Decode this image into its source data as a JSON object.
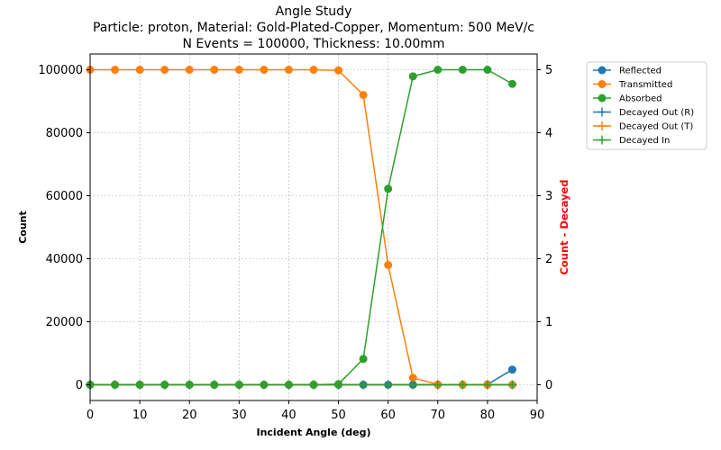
{
  "chart_data": {
    "type": "line",
    "title_lines": [
      "Angle Study",
      "Particle: proton, Material: Gold-Plated-Copper, Momentum: 500 MeV/c",
      "N Events = 100000, Thickness: 10.00mm"
    ],
    "xlabel": "Incident Angle (deg)",
    "ylabel": "Count",
    "ylabel_right": "Count - Decayed",
    "xlim": [
      0,
      90
    ],
    "ylim": [
      -5000,
      105000
    ],
    "ylim_right": [
      -0.25,
      5.25
    ],
    "x_ticks": [
      0,
      10,
      20,
      30,
      40,
      50,
      60,
      70,
      80,
      90
    ],
    "y_ticks": [
      0,
      20000,
      40000,
      60000,
      80000,
      100000
    ],
    "y_ticks_right": [
      0,
      1,
      2,
      3,
      4,
      5
    ],
    "grid": true,
    "legend_position": "outside-right",
    "x": [
      0,
      5,
      10,
      15,
      20,
      25,
      30,
      35,
      40,
      45,
      50,
      55,
      60,
      65,
      70,
      75,
      80,
      85
    ],
    "series": [
      {
        "name": "Reflected",
        "axis": "left",
        "marker": "circle",
        "color": "#1f77b4",
        "values": [
          0,
          0,
          0,
          0,
          0,
          0,
          0,
          0,
          0,
          0,
          0,
          0,
          0,
          0,
          0,
          0,
          100,
          4800
        ]
      },
      {
        "name": "Transmitted",
        "axis": "left",
        "marker": "circle",
        "color": "#ff7f0e",
        "values": [
          100000,
          100000,
          100000,
          100000,
          100000,
          100000,
          100000,
          100000,
          100000,
          100000,
          99800,
          92000,
          38000,
          2200,
          100,
          0,
          0,
          0
        ]
      },
      {
        "name": "Absorbed",
        "axis": "left",
        "marker": "circle",
        "color": "#2ca02c",
        "values": [
          0,
          0,
          0,
          0,
          0,
          0,
          0,
          0,
          0,
          0,
          200,
          8200,
          62200,
          97900,
          100000,
          100000,
          100000,
          95500
        ]
      },
      {
        "name": "Decayed Out (R)",
        "axis": "right",
        "marker": "plus",
        "color": "#1f77b4",
        "values": [
          0,
          0,
          0,
          0,
          0,
          0,
          0,
          0,
          0,
          0,
          0,
          0,
          0,
          0,
          0,
          0,
          0,
          0
        ]
      },
      {
        "name": "Decayed Out (T)",
        "axis": "right",
        "marker": "plus",
        "color": "#ff7f0e",
        "values": [
          0,
          0,
          0,
          0,
          0,
          0,
          0,
          0,
          0,
          0,
          0,
          0,
          0,
          0,
          0,
          0,
          0,
          0
        ]
      },
      {
        "name": "Decayed In",
        "axis": "right",
        "marker": "plus",
        "color": "#2ca02c",
        "values": [
          0,
          0,
          0,
          0,
          0,
          0,
          0,
          0,
          0,
          0,
          0,
          0,
          0,
          0,
          0,
          0,
          0,
          0
        ]
      }
    ],
    "colors": {
      "right_axis_label": "#ff0000",
      "grid": "#b0b0b0"
    }
  }
}
